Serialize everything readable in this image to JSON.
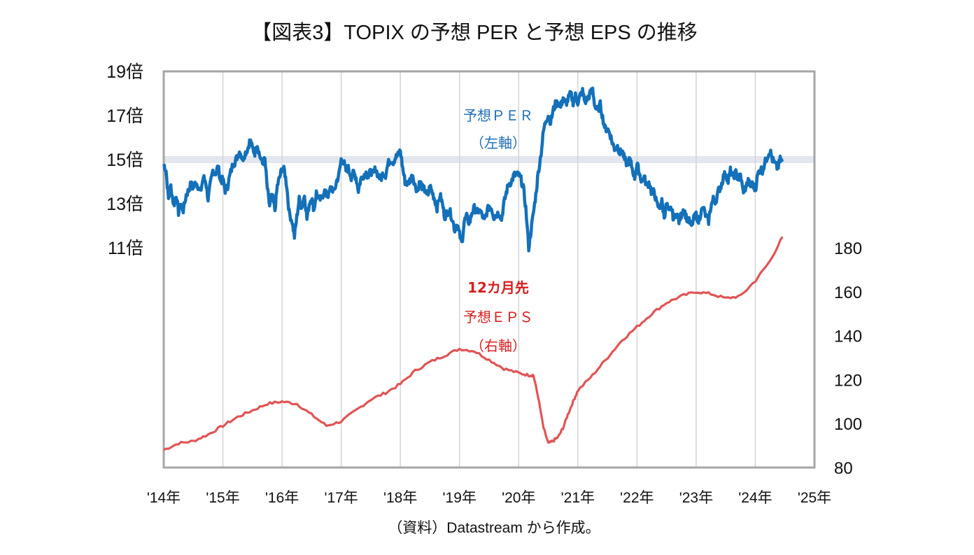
{
  "chart_data": {
    "type": "line",
    "title": "【図表3】TOPIX の予想 PER と予想 EPS の推移",
    "source_note": "（資料）Datastream から作成。",
    "x_axis": {
      "range": [
        2014,
        2025
      ],
      "tick_values": [
        2014,
        2015,
        2016,
        2017,
        2018,
        2019,
        2020,
        2021,
        2022,
        2023,
        2024,
        2025
      ],
      "tick_labels": [
        "'14年",
        "'15年",
        "'16年",
        "'17年",
        "'18年",
        "'19年",
        "'20年",
        "'21年",
        "'22年",
        "'23年",
        "'24年",
        "'25年"
      ],
      "grid": true
    },
    "y_axis_left": {
      "range": [
        3,
        19
      ],
      "tick_values": [
        11,
        13,
        15,
        17,
        19
      ],
      "tick_labels": [
        "11倍",
        "13倍",
        "15倍",
        "17倍",
        "19倍"
      ],
      "reference_band": 15
    },
    "y_axis_right": {
      "range": [
        80,
        260
      ],
      "tick_values": [
        80,
        100,
        120,
        140,
        160,
        180
      ],
      "tick_labels": [
        "80",
        "100",
        "120",
        "140",
        "160",
        "180"
      ]
    },
    "colors": {
      "per": "#1370b9",
      "eps": "#e05555",
      "per_label": "#1f6fb5",
      "eps_label": "#d81f1f",
      "band": "#e3e6ee",
      "grid": "#d4d4d4",
      "frame": "#a6a6a6"
    },
    "annotations": {
      "per": [
        "予想ＰＥＲ",
        "（左軸）"
      ],
      "eps": [
        "12カ月先",
        "予想ＥＰＳ",
        "（右軸）"
      ]
    },
    "series": [
      {
        "name": "予想PER（左軸）",
        "axis": "left",
        "x": [
          2014.0,
          2014.04,
          2014.08,
          2014.12,
          2014.17,
          2014.21,
          2014.25,
          2014.29,
          2014.33,
          2014.38,
          2014.42,
          2014.46,
          2014.5,
          2014.54,
          2014.58,
          2014.62,
          2014.67,
          2014.71,
          2014.75,
          2014.79,
          2014.83,
          2014.88,
          2014.92,
          2014.96,
          2015.0,
          2015.04,
          2015.08,
          2015.12,
          2015.17,
          2015.21,
          2015.25,
          2015.29,
          2015.33,
          2015.38,
          2015.42,
          2015.46,
          2015.5,
          2015.54,
          2015.58,
          2015.62,
          2015.67,
          2015.71,
          2015.75,
          2015.79,
          2015.83,
          2015.88,
          2015.92,
          2015.96,
          2016.0,
          2016.04,
          2016.08,
          2016.12,
          2016.17,
          2016.21,
          2016.25,
          2016.29,
          2016.33,
          2016.38,
          2016.42,
          2016.46,
          2016.5,
          2016.54,
          2016.58,
          2016.62,
          2016.67,
          2016.71,
          2016.75,
          2016.79,
          2016.83,
          2016.88,
          2016.92,
          2016.96,
          2017.0,
          2017.04,
          2017.08,
          2017.12,
          2017.17,
          2017.21,
          2017.25,
          2017.29,
          2017.33,
          2017.38,
          2017.42,
          2017.46,
          2017.5,
          2017.54,
          2017.58,
          2017.62,
          2017.67,
          2017.71,
          2017.75,
          2017.79,
          2017.83,
          2017.88,
          2017.92,
          2017.96,
          2018.0,
          2018.04,
          2018.08,
          2018.12,
          2018.17,
          2018.21,
          2018.25,
          2018.29,
          2018.33,
          2018.38,
          2018.42,
          2018.46,
          2018.5,
          2018.54,
          2018.58,
          2018.62,
          2018.67,
          2018.71,
          2018.75,
          2018.79,
          2018.83,
          2018.88,
          2018.92,
          2018.96,
          2019.0,
          2019.04,
          2019.08,
          2019.12,
          2019.17,
          2019.21,
          2019.25,
          2019.29,
          2019.33,
          2019.38,
          2019.42,
          2019.46,
          2019.5,
          2019.54,
          2019.58,
          2019.62,
          2019.67,
          2019.71,
          2019.75,
          2019.79,
          2019.83,
          2019.88,
          2019.92,
          2019.96,
          2020.0,
          2020.04,
          2020.08,
          2020.12,
          2020.17,
          2020.21,
          2020.25,
          2020.29,
          2020.33,
          2020.38,
          2020.42,
          2020.46,
          2020.5,
          2020.54,
          2020.58,
          2020.62,
          2020.67,
          2020.71,
          2020.75,
          2020.79,
          2020.83,
          2020.88,
          2020.92,
          2020.96,
          2021.0,
          2021.04,
          2021.08,
          2021.12,
          2021.17,
          2021.21,
          2021.25,
          2021.29,
          2021.33,
          2021.38,
          2021.42,
          2021.46,
          2021.5,
          2021.54,
          2021.58,
          2021.62,
          2021.67,
          2021.71,
          2021.75,
          2021.79,
          2021.83,
          2021.88,
          2021.92,
          2021.96,
          2022.0,
          2022.04,
          2022.08,
          2022.12,
          2022.17,
          2022.21,
          2022.25,
          2022.29,
          2022.33,
          2022.38,
          2022.42,
          2022.46,
          2022.5,
          2022.54,
          2022.58,
          2022.62,
          2022.67,
          2022.71,
          2022.75,
          2022.79,
          2022.83,
          2022.88,
          2022.92,
          2022.96,
          2023.0,
          2023.04,
          2023.08,
          2023.12,
          2023.17,
          2023.21,
          2023.25,
          2023.29,
          2023.33,
          2023.38,
          2023.42,
          2023.46,
          2023.5,
          2023.54,
          2023.58,
          2023.62,
          2023.67,
          2023.71,
          2023.75,
          2023.79,
          2023.83,
          2023.88,
          2023.92,
          2023.96,
          2024.0,
          2024.04,
          2024.08,
          2024.12,
          2024.17,
          2024.21,
          2024.25,
          2024.29,
          2024.33,
          2024.38,
          2024.42,
          2024.46
        ],
        "values": [
          14.8,
          14.5,
          13.2,
          13.8,
          12.9,
          13.4,
          12.6,
          13.0,
          12.7,
          13.4,
          13.6,
          13.9,
          13.7,
          14.0,
          13.8,
          13.5,
          14.2,
          14.0,
          13.2,
          13.9,
          14.5,
          14.4,
          14.7,
          14.0,
          14.1,
          13.6,
          13.8,
          14.3,
          14.8,
          14.9,
          15.2,
          15.4,
          15.0,
          15.3,
          15.5,
          15.9,
          15.5,
          15.3,
          15.7,
          15.2,
          14.8,
          15.0,
          13.7,
          12.9,
          13.4,
          12.7,
          13.8,
          14.2,
          14.6,
          14.5,
          13.8,
          12.6,
          12.2,
          11.5,
          12.4,
          13.2,
          12.8,
          13.4,
          12.3,
          13.0,
          13.3,
          12.7,
          13.5,
          13.2,
          13.2,
          13.6,
          13.4,
          13.4,
          13.8,
          13.5,
          14.0,
          14.3,
          15.0,
          14.9,
          14.5,
          14.6,
          14.2,
          14.4,
          14.2,
          13.6,
          14.1,
          14.3,
          14.4,
          14.2,
          14.5,
          14.3,
          14.6,
          14.3,
          14.1,
          14.4,
          14.3,
          14.8,
          15.0,
          14.9,
          15.1,
          15.2,
          15.4,
          14.6,
          14.0,
          13.9,
          14.1,
          14.3,
          13.8,
          13.6,
          14.0,
          13.7,
          13.6,
          13.3,
          13.8,
          13.5,
          13.2,
          12.8,
          13.4,
          13.0,
          12.4,
          12.6,
          12.7,
          12.3,
          11.8,
          12.1,
          11.6,
          11.2,
          12.2,
          12.4,
          12.1,
          12.6,
          12.8,
          12.6,
          12.7,
          12.5,
          12.2,
          12.6,
          12.9,
          12.8,
          12.4,
          12.5,
          12.6,
          12.3,
          13.0,
          13.5,
          13.9,
          14.0,
          14.3,
          14.3,
          14.3,
          14.1,
          13.7,
          12.8,
          11.0,
          11.8,
          12.6,
          13.4,
          14.4,
          15.3,
          16.3,
          16.8,
          17.0,
          16.7,
          17.2,
          17.5,
          17.6,
          17.4,
          17.8,
          17.5,
          17.7,
          18.0,
          17.6,
          17.9,
          17.6,
          17.9,
          18.1,
          17.6,
          17.8,
          18.0,
          18.2,
          17.4,
          17.2,
          17.5,
          16.9,
          16.4,
          16.4,
          16.2,
          15.8,
          15.5,
          15.6,
          15.3,
          15.4,
          15.0,
          14.8,
          15.0,
          14.6,
          14.2,
          14.8,
          14.4,
          14.0,
          14.2,
          13.8,
          14.0,
          13.4,
          13.6,
          13.0,
          12.8,
          13.1,
          12.4,
          13.0,
          12.6,
          12.8,
          12.3,
          12.6,
          12.2,
          12.5,
          12.8,
          12.4,
          12.2,
          12.0,
          12.3,
          12.5,
          12.2,
          12.6,
          12.8,
          12.4,
          12.2,
          12.9,
          13.2,
          13.1,
          13.6,
          13.8,
          14.2,
          14.4,
          14.0,
          14.5,
          14.2,
          14.4,
          14.1,
          14.3,
          13.6,
          13.7,
          14.0,
          13.8,
          13.9,
          13.6,
          14.3,
          14.6,
          14.5,
          14.9,
          15.2,
          15.4,
          15.0,
          14.8,
          14.6,
          15.0,
          14.9
        ]
      },
      {
        "name": "12カ月先予想EPS（右軸）",
        "axis": "right",
        "x": [
          2014.0,
          2014.25,
          2014.5,
          2014.75,
          2015.0,
          2015.25,
          2015.5,
          2015.75,
          2016.0,
          2016.25,
          2016.5,
          2016.75,
          2017.0,
          2017.25,
          2017.5,
          2017.75,
          2018.0,
          2018.25,
          2018.5,
          2018.75,
          2019.0,
          2019.25,
          2019.5,
          2019.75,
          2020.0,
          2020.17,
          2020.25,
          2020.33,
          2020.42,
          2020.5,
          2020.58,
          2020.67,
          2020.75,
          2020.83,
          2020.92,
          2021.0,
          2021.25,
          2021.5,
          2021.75,
          2022.0,
          2022.25,
          2022.5,
          2022.75,
          2023.0,
          2023.25,
          2023.5,
          2023.75,
          2024.0,
          2024.25,
          2024.46
        ],
        "values": [
          88,
          91,
          92,
          95,
          99,
          103,
          106,
          109,
          110,
          109,
          104,
          99,
          101,
          106,
          111,
          114,
          118,
          124,
          128,
          131,
          134,
          133,
          129,
          125,
          123,
          122,
          122,
          112,
          98,
          91,
          92,
          94,
          98,
          104,
          110,
          115,
          122,
          130,
          138,
          144,
          150,
          155,
          158,
          160,
          159,
          157,
          158,
          165,
          174,
          185
        ]
      }
    ]
  }
}
